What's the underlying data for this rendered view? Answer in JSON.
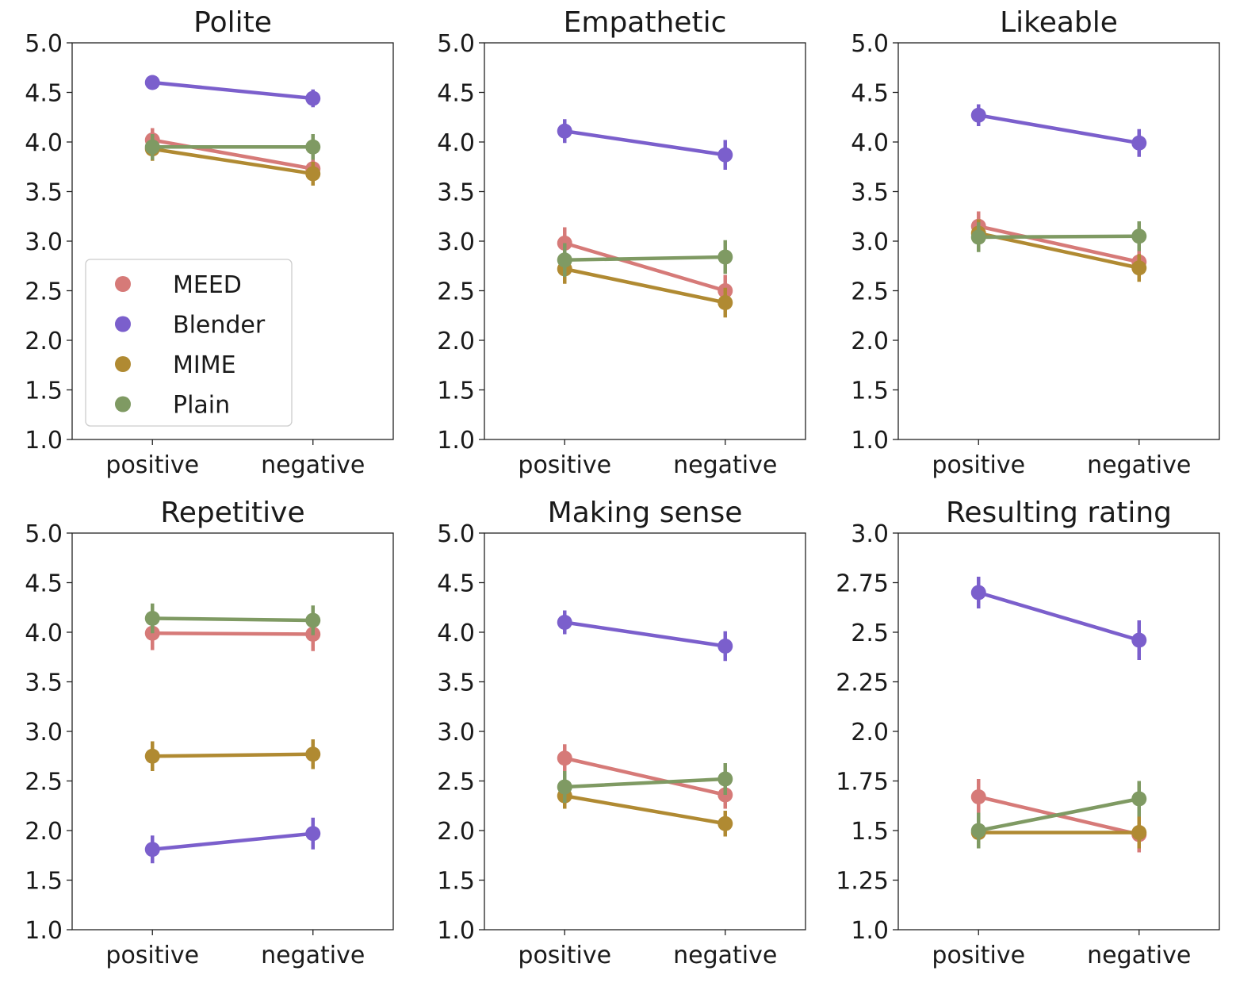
{
  "colors": {
    "MEED": "#d67a78",
    "Blender": "#7b5fcc",
    "MIME": "#b08a32",
    "Plain": "#7f9a63"
  },
  "legend": {
    "placement": "lower-left of first panel",
    "entries": [
      "MEED",
      "Blender",
      "MIME",
      "Plain"
    ]
  },
  "chart_data": [
    {
      "type": "line",
      "title": "Polite",
      "categories": [
        "positive",
        "negative"
      ],
      "ylim": [
        1.0,
        5.0
      ],
      "yticks": [
        "1.0",
        "1.5",
        "2.0",
        "2.5",
        "3.0",
        "3.5",
        "4.0",
        "4.5",
        "5.0"
      ],
      "ytick_values": [
        1.0,
        1.5,
        2.0,
        2.5,
        3.0,
        3.5,
        4.0,
        4.5,
        5.0
      ],
      "series": [
        {
          "name": "MEED",
          "values": [
            4.02,
            3.73
          ],
          "err": [
            0.12,
            0.12
          ]
        },
        {
          "name": "Blender",
          "values": [
            4.6,
            4.44
          ],
          "err": [
            0.07,
            0.09
          ]
        },
        {
          "name": "MIME",
          "values": [
            3.93,
            3.68
          ],
          "err": [
            0.12,
            0.12
          ]
        },
        {
          "name": "Plain",
          "values": [
            3.95,
            3.95
          ],
          "err": [
            0.13,
            0.13
          ]
        }
      ]
    },
    {
      "type": "line",
      "title": "Empathetic",
      "categories": [
        "positive",
        "negative"
      ],
      "ylim": [
        1.0,
        5.0
      ],
      "yticks": [
        "1.0",
        "1.5",
        "2.0",
        "2.5",
        "3.0",
        "3.5",
        "4.0",
        "4.5",
        "5.0"
      ],
      "ytick_values": [
        1.0,
        1.5,
        2.0,
        2.5,
        3.0,
        3.5,
        4.0,
        4.5,
        5.0
      ],
      "series": [
        {
          "name": "MEED",
          "values": [
            2.98,
            2.5
          ],
          "err": [
            0.16,
            0.16
          ]
        },
        {
          "name": "Blender",
          "values": [
            4.11,
            3.87
          ],
          "err": [
            0.12,
            0.15
          ]
        },
        {
          "name": "MIME",
          "values": [
            2.72,
            2.38
          ],
          "err": [
            0.15,
            0.15
          ]
        },
        {
          "name": "Plain",
          "values": [
            2.81,
            2.84
          ],
          "err": [
            0.17,
            0.17
          ]
        }
      ]
    },
    {
      "type": "line",
      "title": "Likeable",
      "categories": [
        "positive",
        "negative"
      ],
      "ylim": [
        1.0,
        5.0
      ],
      "yticks": [
        "1.0",
        "1.5",
        "2.0",
        "2.5",
        "3.0",
        "3.5",
        "4.0",
        "4.5",
        "5.0"
      ],
      "ytick_values": [
        1.0,
        1.5,
        2.0,
        2.5,
        3.0,
        3.5,
        4.0,
        4.5,
        5.0
      ],
      "series": [
        {
          "name": "MEED",
          "values": [
            3.15,
            2.79
          ],
          "err": [
            0.15,
            0.15
          ]
        },
        {
          "name": "Blender",
          "values": [
            4.27,
            3.99
          ],
          "err": [
            0.11,
            0.14
          ]
        },
        {
          "name": "MIME",
          "values": [
            3.08,
            2.73
          ],
          "err": [
            0.14,
            0.14
          ]
        },
        {
          "name": "Plain",
          "values": [
            3.04,
            3.05
          ],
          "err": [
            0.15,
            0.15
          ]
        }
      ]
    },
    {
      "type": "line",
      "title": "Repetitive",
      "categories": [
        "positive",
        "negative"
      ],
      "ylim": [
        1.0,
        5.0
      ],
      "yticks": [
        "1.0",
        "1.5",
        "2.0",
        "2.5",
        "3.0",
        "3.5",
        "4.0",
        "4.5",
        "5.0"
      ],
      "ytick_values": [
        1.0,
        1.5,
        2.0,
        2.5,
        3.0,
        3.5,
        4.0,
        4.5,
        5.0
      ],
      "series": [
        {
          "name": "MEED",
          "values": [
            3.99,
            3.98
          ],
          "err": [
            0.17,
            0.17
          ]
        },
        {
          "name": "Blender",
          "values": [
            1.81,
            1.97
          ],
          "err": [
            0.14,
            0.16
          ]
        },
        {
          "name": "MIME",
          "values": [
            2.75,
            2.77
          ],
          "err": [
            0.15,
            0.15
          ]
        },
        {
          "name": "Plain",
          "values": [
            4.14,
            4.12
          ],
          "err": [
            0.15,
            0.15
          ]
        }
      ]
    },
    {
      "type": "line",
      "title": "Making sense",
      "categories": [
        "positive",
        "negative"
      ],
      "ylim": [
        1.0,
        5.0
      ],
      "yticks": [
        "1.0",
        "1.5",
        "2.0",
        "2.5",
        "3.0",
        "3.5",
        "4.0",
        "4.5",
        "5.0"
      ],
      "ytick_values": [
        1.0,
        1.5,
        2.0,
        2.5,
        3.0,
        3.5,
        4.0,
        4.5,
        5.0
      ],
      "series": [
        {
          "name": "MEED",
          "values": [
            2.73,
            2.36
          ],
          "err": [
            0.14,
            0.14
          ]
        },
        {
          "name": "Blender",
          "values": [
            4.1,
            3.86
          ],
          "err": [
            0.12,
            0.15
          ]
        },
        {
          "name": "MIME",
          "values": [
            2.35,
            2.07
          ],
          "err": [
            0.13,
            0.13
          ]
        },
        {
          "name": "Plain",
          "values": [
            2.44,
            2.52
          ],
          "err": [
            0.16,
            0.16
          ]
        }
      ]
    },
    {
      "type": "line",
      "title": "Resulting rating",
      "categories": [
        "positive",
        "negative"
      ],
      "ylim": [
        1.0,
        3.0
      ],
      "yticks": [
        "1.0",
        "1.25",
        "1.5",
        "1.75",
        "2.0",
        "2.25",
        "2.5",
        "2.75",
        "3.0"
      ],
      "ytick_values": [
        1.0,
        1.25,
        1.5,
        1.75,
        2.0,
        2.25,
        2.5,
        2.75,
        3.0
      ],
      "series": [
        {
          "name": "MEED",
          "values": [
            1.67,
            1.48
          ],
          "err": [
            0.09,
            0.09
          ]
        },
        {
          "name": "Blender",
          "values": [
            2.7,
            2.46
          ],
          "err": [
            0.08,
            0.1
          ]
        },
        {
          "name": "MIME",
          "values": [
            1.49,
            1.49
          ],
          "err": [
            0.08,
            0.08
          ]
        },
        {
          "name": "Plain",
          "values": [
            1.5,
            1.66
          ],
          "err": [
            0.09,
            0.09
          ]
        }
      ]
    }
  ]
}
